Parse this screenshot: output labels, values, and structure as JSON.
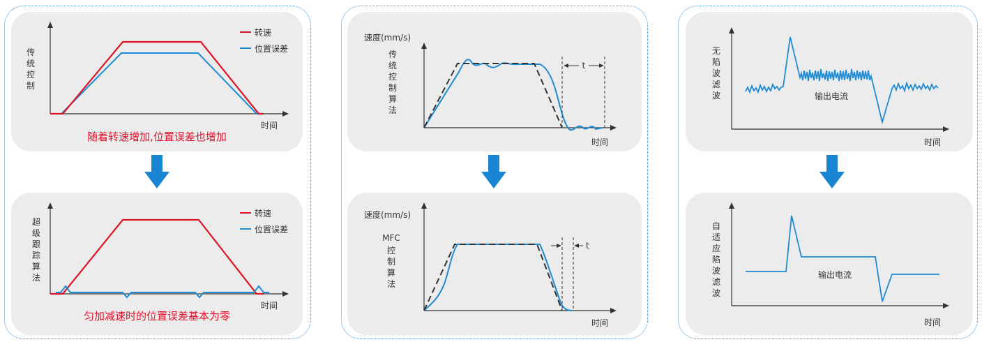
{
  "colors": {
    "red": "#dc1428",
    "blue": "#1c8bd4",
    "dark": "#333333",
    "arrow": "#1a86d3"
  },
  "panel1": {
    "top": {
      "ylabel_chars": [
        "传",
        "统",
        "控",
        "制"
      ],
      "xlabel": "时间",
      "legend": [
        {
          "label": "转速",
          "color": "red"
        },
        {
          "label": "位置误差",
          "color": "blue"
        }
      ],
      "caption": "随着转速增加,位置误差也增加"
    },
    "bottom": {
      "ylabel_chars": [
        "超",
        "级",
        "跟",
        "踪",
        "算",
        "法"
      ],
      "xlabel": "时间",
      "legend": [
        {
          "label": "转速",
          "color": "red"
        },
        {
          "label": "位置误差",
          "color": "blue"
        }
      ],
      "caption": "匀加减速时的位置误差基本为零"
    }
  },
  "panel2": {
    "top": {
      "ylabel": "速度(mm/s)",
      "side_chars": [
        "传",
        "统",
        "控",
        "制",
        "算",
        "法"
      ],
      "xlabel": "时间",
      "t_label": "t"
    },
    "bottom": {
      "ylabel": "速度(mm/s)",
      "side_first": "MFC",
      "side_chars": [
        "控",
        "制",
        "算",
        "法"
      ],
      "xlabel": "时间",
      "t_label": "t"
    }
  },
  "panel3": {
    "top": {
      "ylabel_chars": [
        "无",
        "陷",
        "波",
        "滤",
        "波"
      ],
      "xlabel": "时间",
      "signal_label": "输出电流"
    },
    "bottom": {
      "ylabel_chars": [
        "自",
        "适",
        "应",
        "陷",
        "波",
        "滤",
        "波"
      ],
      "xlabel": "时间",
      "signal_label": "输出电流"
    }
  }
}
